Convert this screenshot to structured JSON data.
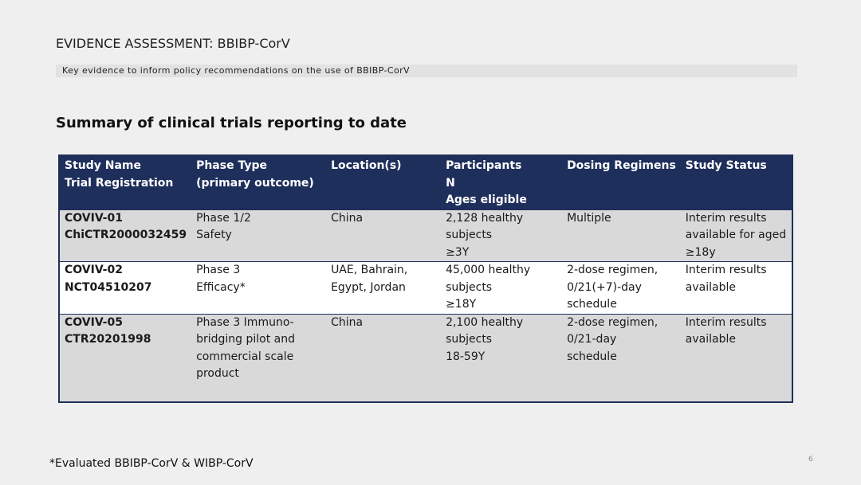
{
  "header": {
    "eyebrow": "EVIDENCE ASSESSMENT: BBIBP-CorV",
    "subtitle": "Key evidence to inform policy recommendations on the use of BBIBP-CorV"
  },
  "section_title": "Summary of clinical trials reporting to date",
  "table": {
    "headers": [
      [
        "Study Name",
        "Trial Registration"
      ],
      [
        "Phase Type",
        "(primary outcome)"
      ],
      [
        "Location(s)"
      ],
      [
        "Participants",
        "N",
        "Ages eligible"
      ],
      [
        "Dosing Regimens"
      ],
      [
        "Study Status"
      ]
    ],
    "rows": [
      {
        "study_name": [
          "COVIV-01",
          "ChiCTR2000032459"
        ],
        "phase_type": [
          "Phase 1/2",
          "Safety"
        ],
        "locations": [
          "China"
        ],
        "participants": [
          "2,128 healthy",
          "subjects",
          "≥3Y"
        ],
        "dosing": [
          "Multiple"
        ],
        "status": [
          "Interim results",
          "available for aged",
          "≥18y"
        ]
      },
      {
        "study_name": [
          "COVIV-02",
          "NCT04510207"
        ],
        "phase_type": [
          "Phase 3",
          "Efficacy*"
        ],
        "locations": [
          "UAE, Bahrain,",
          "Egypt, Jordan"
        ],
        "participants": [
          "45,000 healthy",
          "subjects",
          "≥18Y"
        ],
        "dosing": [
          "2-dose regimen,",
          "0/21(+7)-day",
          "schedule"
        ],
        "status": [
          "Interim results",
          "available"
        ]
      },
      {
        "study_name": [
          "COVIV-05",
          "CTR20201998"
        ],
        "phase_type": [
          "Phase 3 Immuno-",
          "bridging pilot and",
          "commercial scale",
          "product"
        ],
        "locations": [
          "China"
        ],
        "participants": [
          "2,100 healthy",
          "subjects",
          "18-59Y"
        ],
        "dosing": [
          "2-dose regimen,",
          "0/21-day",
          "schedule"
        ],
        "status": [
          "Interim results",
          "available"
        ]
      }
    ]
  },
  "footnote": "*Evaluated BBIBP-CorV & WIBP-CorV",
  "page_number": "6"
}
